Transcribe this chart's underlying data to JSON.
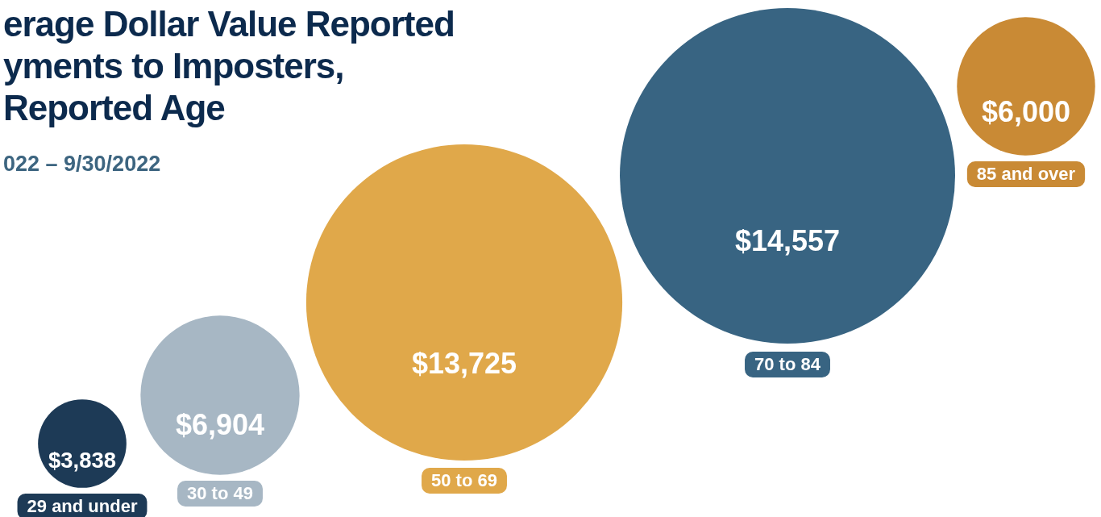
{
  "chart_data": {
    "type": "other",
    "title": "erage Dollar Value Reported\nyments to Imposters,\nReported Age",
    "subtitle": "022 – 9/30/2022",
    "categories": [
      "29 and under",
      "30 to 49",
      "50 to 69",
      "70 to 84",
      "85 and over"
    ],
    "values": [
      3838,
      6904,
      13725,
      14557,
      6000
    ],
    "value_labels": [
      "$3,838",
      "$6,904",
      "$13,725",
      "$14,557",
      "$6,000"
    ],
    "colors": [
      "#1d3a56",
      "#a7b7c4",
      "#e0a84a",
      "#386482",
      "#c98a35"
    ]
  }
}
